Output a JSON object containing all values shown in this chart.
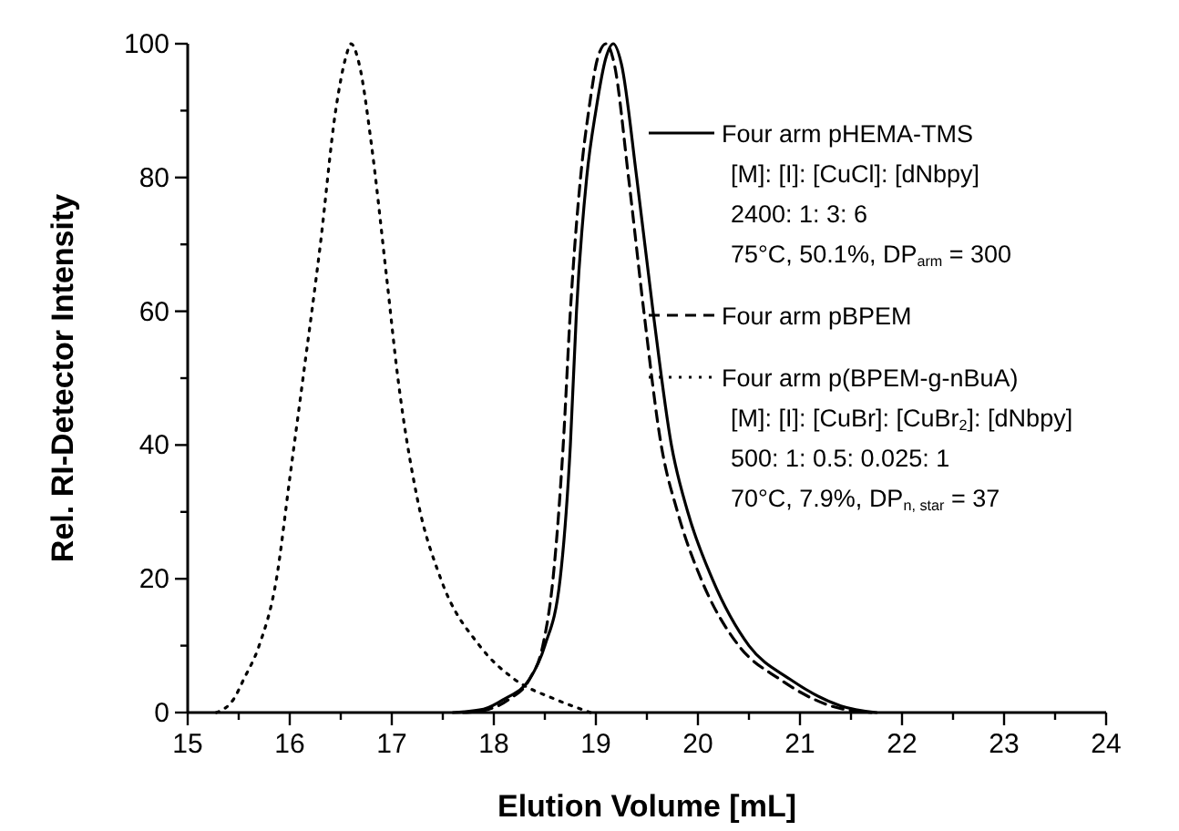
{
  "chart_data": {
    "type": "line",
    "xlabel": "Elution Volume [mL]",
    "ylabel": "Rel. RI-Detector Intensity",
    "xlim": [
      15,
      24
    ],
    "ylim": [
      0,
      100
    ],
    "xticks": [
      15,
      {
        "value": 15.5,
        "label": null
      },
      16,
      {
        "value": 16.5,
        "label": null
      },
      17,
      {
        "value": 17.5,
        "label": null
      },
      18,
      {
        "value": 18.5,
        "label": null
      },
      19,
      {
        "value": 19.5,
        "label": null
      },
      20,
      {
        "value": 20.5,
        "label": null
      },
      21,
      {
        "value": 21.5,
        "label": null
      },
      22,
      {
        "value": 22.5,
        "label": null
      },
      23,
      {
        "value": 23.5,
        "label": null
      },
      24
    ],
    "yticks": [
      0,
      {
        "value": 10,
        "label": null
      },
      20,
      {
        "value": 30,
        "label": null
      },
      40,
      {
        "value": 50,
        "label": null
      },
      60,
      {
        "value": 70,
        "label": null
      },
      80,
      {
        "value": 90,
        "label": null
      },
      100
    ],
    "legend": "right",
    "grid": false,
    "marker": "none",
    "series": [
      {
        "name": "Four arm pHEMA-TMS",
        "color": "#000000",
        "line_style": "solid",
        "x": [
          17.6,
          17.9,
          18.1,
          18.35,
          18.5,
          18.65,
          18.75,
          18.81,
          18.91,
          19.0,
          19.1,
          19.17,
          19.25,
          19.4,
          19.56,
          19.74,
          19.9,
          20.14,
          20.5,
          20.9,
          21.4,
          21.75
        ],
        "values": [
          0,
          0.5,
          2,
          5,
          10,
          20,
          40,
          60,
          80,
          90,
          98,
          100,
          97,
          80,
          60,
          40,
          30,
          20,
          10,
          5,
          1,
          0
        ]
      },
      {
        "name": "Four arm pBPEM",
        "color": "#000000",
        "line_style": "dashed",
        "x": [
          17.7,
          17.95,
          18.15,
          18.35,
          18.48,
          18.58,
          18.68,
          18.75,
          18.85,
          18.93,
          19.02,
          19.1,
          19.18,
          19.32,
          19.47,
          19.64,
          19.8,
          20.03,
          20.4,
          20.8,
          21.3,
          21.7
        ],
        "values": [
          0,
          0.5,
          2,
          5,
          10,
          20,
          40,
          60,
          80,
          90,
          98,
          100,
          97,
          80,
          60,
          40,
          30,
          20,
          10,
          5,
          1,
          0
        ]
      },
      {
        "name": "Four arm p(BPEM-g-nBuA)",
        "color": "#000000",
        "line_style": "dotted",
        "x": [
          15.28,
          15.45,
          15.55,
          15.7,
          15.87,
          16.0,
          16.13,
          16.3,
          16.45,
          16.55,
          16.6,
          16.68,
          16.8,
          16.95,
          17.06,
          17.25,
          17.48,
          17.86,
          18.2,
          18.6,
          18.95
        ],
        "values": [
          0,
          2,
          5,
          10,
          20,
          35,
          50,
          70,
          90,
          98,
          100,
          97,
          85,
          65,
          50,
          32,
          20,
          10,
          5,
          2,
          0
        ]
      }
    ],
    "annotations": [
      "[M]: [I]: [CuCl]: [dNbpy]",
      "2400: 1: 3: 6",
      "75°C, 50.1%, DP$_{arm}$ = 300",
      "[M]: [I]: [CuBr]: [CuBr$_{2}$]: [dNbpy]",
      "500: 1: 0.5: 0.025: 1",
      "70°C, 7.9%, DP$_{n, star}$ = 37"
    ]
  }
}
